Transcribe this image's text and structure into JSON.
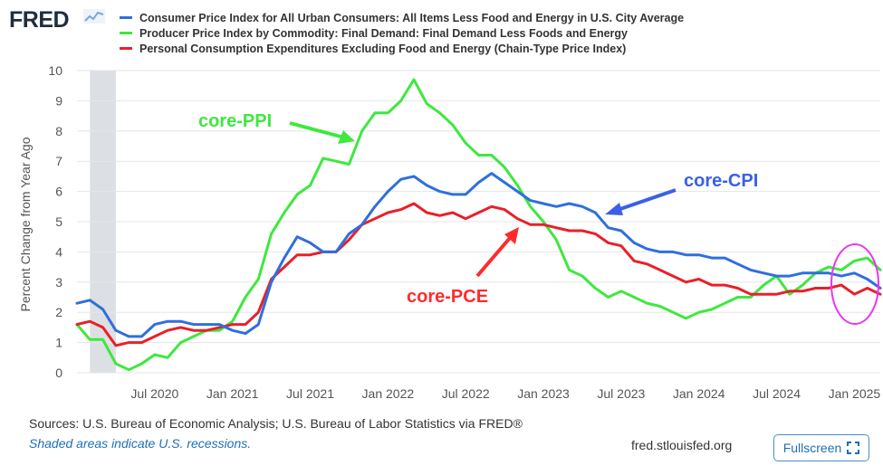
{
  "header": {
    "logo_text": "FRED",
    "logo_icon": "line-graph-icon"
  },
  "legend": [
    {
      "label": "Consumer Price Index for All Urban Consumers: All Items Less Food and Energy in U.S. City Average",
      "color": "#2f6fde"
    },
    {
      "label": "Producer Price Index by Commodity: Final Demand: Final Demand Less Foods and Energy",
      "color": "#3ee83e"
    },
    {
      "label": "Personal Consumption Expenditures Excluding Food and Energy (Chain-Type Price Index)",
      "color": "#e8202a"
    }
  ],
  "chart_data": {
    "type": "line",
    "ylabel": "Percent Change from Year Ago",
    "ylim": [
      0,
      10
    ],
    "yticks": [
      "0",
      "1",
      "2",
      "3",
      "4",
      "5",
      "6",
      "7",
      "8",
      "9",
      "10"
    ],
    "xticks": [
      "Jul 2020",
      "Jan 2021",
      "Jul 2021",
      "Jan 2022",
      "Jul 2022",
      "Jan 2023",
      "Jul 2023",
      "Jan 2024",
      "Jul 2024",
      "Jan 2025"
    ],
    "x": [
      "2020-01",
      "2020-02",
      "2020-03",
      "2020-04",
      "2020-05",
      "2020-06",
      "2020-07",
      "2020-08",
      "2020-09",
      "2020-10",
      "2020-11",
      "2020-12",
      "2021-01",
      "2021-02",
      "2021-03",
      "2021-04",
      "2021-05",
      "2021-06",
      "2021-07",
      "2021-08",
      "2021-09",
      "2021-10",
      "2021-11",
      "2021-12",
      "2022-01",
      "2022-02",
      "2022-03",
      "2022-04",
      "2022-05",
      "2022-06",
      "2022-07",
      "2022-08",
      "2022-09",
      "2022-10",
      "2022-11",
      "2022-12",
      "2023-01",
      "2023-02",
      "2023-03",
      "2023-04",
      "2023-05",
      "2023-06",
      "2023-07",
      "2023-08",
      "2023-09",
      "2023-10",
      "2023-11",
      "2023-12",
      "2024-01",
      "2024-02",
      "2024-03",
      "2024-04",
      "2024-05",
      "2024-06",
      "2024-07",
      "2024-08",
      "2024-09",
      "2024-10",
      "2024-11",
      "2024-12",
      "2025-01",
      "2025-02",
      "2025-03"
    ],
    "recession": [
      "2020-02",
      "2020-04"
    ],
    "grid": true,
    "legend_position": "top",
    "series": [
      {
        "name": "Consumer Price Index for All Urban Consumers: All Items Less Food and Energy in U.S. City Average",
        "color": "#2f6fde",
        "values": [
          2.3,
          2.4,
          2.1,
          1.4,
          1.2,
          1.2,
          1.6,
          1.7,
          1.7,
          1.6,
          1.6,
          1.6,
          1.4,
          1.3,
          1.6,
          3.0,
          3.8,
          4.5,
          4.3,
          4.0,
          4.0,
          4.6,
          4.9,
          5.5,
          6.0,
          6.4,
          6.5,
          6.2,
          6.0,
          5.9,
          5.9,
          6.3,
          6.6,
          6.3,
          6.0,
          5.7,
          5.6,
          5.5,
          5.6,
          5.5,
          5.3,
          4.8,
          4.7,
          4.3,
          4.1,
          4.0,
          4.0,
          3.9,
          3.9,
          3.8,
          3.8,
          3.6,
          3.4,
          3.3,
          3.2,
          3.2,
          3.3,
          3.3,
          3.3,
          3.2,
          3.3,
          3.1,
          2.8
        ]
      },
      {
        "name": "Producer Price Index by Commodity: Final Demand: Final Demand Less Foods and Energy",
        "color": "#3ee83e",
        "values": [
          1.6,
          1.1,
          1.1,
          0.3,
          0.1,
          0.3,
          0.6,
          0.5,
          1.0,
          1.2,
          1.4,
          1.4,
          1.7,
          2.5,
          3.1,
          4.6,
          5.3,
          5.9,
          6.2,
          7.1,
          7.0,
          6.9,
          8.0,
          8.6,
          8.6,
          9.0,
          9.7,
          8.9,
          8.6,
          8.2,
          7.6,
          7.2,
          7.2,
          6.8,
          6.2,
          5.5,
          5.0,
          4.4,
          3.4,
          3.2,
          2.8,
          2.5,
          2.7,
          2.5,
          2.3,
          2.2,
          2.0,
          1.8,
          2.0,
          2.1,
          2.3,
          2.5,
          2.5,
          2.9,
          3.2,
          2.6,
          2.9,
          3.3,
          3.5,
          3.4,
          3.7,
          3.8,
          3.4
        ]
      },
      {
        "name": "Personal Consumption Expenditures Excluding Food and Energy (Chain-Type Price Index)",
        "color": "#e8202a",
        "values": [
          1.6,
          1.7,
          1.5,
          0.9,
          1.0,
          1.0,
          1.2,
          1.4,
          1.5,
          1.4,
          1.4,
          1.5,
          1.6,
          1.6,
          2.0,
          3.1,
          3.5,
          3.9,
          3.9,
          4.0,
          4.0,
          4.4,
          4.9,
          5.1,
          5.3,
          5.4,
          5.6,
          5.3,
          5.2,
          5.3,
          5.1,
          5.3,
          5.5,
          5.4,
          5.1,
          4.9,
          4.9,
          4.8,
          4.7,
          4.7,
          4.6,
          4.3,
          4.2,
          3.7,
          3.6,
          3.4,
          3.2,
          3.0,
          3.1,
          2.9,
          2.9,
          2.8,
          2.6,
          2.6,
          2.6,
          2.7,
          2.7,
          2.8,
          2.8,
          2.9,
          2.6,
          2.8,
          2.6
        ]
      }
    ],
    "annotations": [
      {
        "text": "core-PPI",
        "color": "#3ee83e"
      },
      {
        "text": "core-CPI",
        "color": "#3b60e6"
      },
      {
        "text": "core-PCE",
        "color": "#ff2b2b"
      }
    ]
  },
  "footer": {
    "sources": "Sources: U.S. Bureau of Economic Analysis; U.S. Bureau of Labor Statistics via FRED®",
    "shaded_note": "Shaded areas indicate U.S. recessions.",
    "site": "fred.stlouisfed.org",
    "fullscreen_label": "Fullscreen",
    "fullscreen_icon": "expand-icon"
  }
}
